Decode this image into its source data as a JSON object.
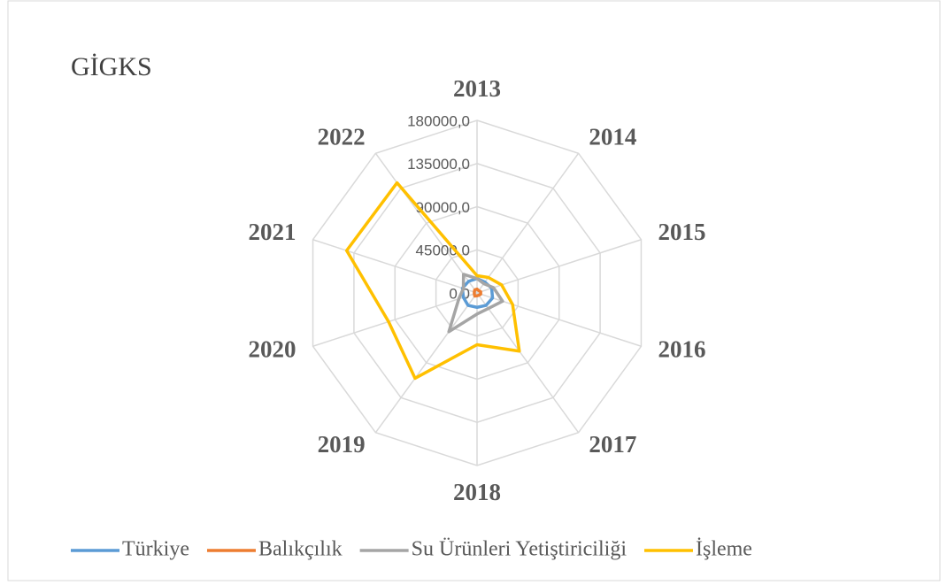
{
  "chart_data": {
    "type": "radar",
    "title": "GİGKS",
    "categories": [
      "2013",
      "2014",
      "2015",
      "2016",
      "2017",
      "2018",
      "2019",
      "2020",
      "2021",
      "2022"
    ],
    "ylim": [
      0,
      180000
    ],
    "yticks": [
      {
        "value": 0,
        "label": "0,0"
      },
      {
        "value": 45000,
        "label": "45000,0"
      },
      {
        "value": 90000,
        "label": "90000,0"
      },
      {
        "value": 135000,
        "label": "135000,0"
      },
      {
        "value": 180000,
        "label": "180000,0"
      }
    ],
    "grid": true,
    "legend": "bottom",
    "series": [
      {
        "name": "Türkiye",
        "color": "#5b9bd5",
        "values": [
          15000,
          14000,
          16000,
          17000,
          16000,
          15000,
          16000,
          15000,
          16000,
          15000
        ]
      },
      {
        "name": "Balıkçılık",
        "color": "#ed7d31",
        "values": [
          4000,
          3000,
          4000,
          4000,
          3000,
          3000,
          4000,
          3000,
          3000,
          4000
        ]
      },
      {
        "name": "Su Ürünleri Yetiştiriciliği",
        "color": "#a5a5a5",
        "values": [
          15000,
          12000,
          18000,
          28000,
          20000,
          22000,
          50000,
          20000,
          15000,
          24000
        ]
      },
      {
        "name": "İşleme",
        "color": "#ffc000",
        "values": [
          18000,
          20000,
          27000,
          39000,
          75000,
          54000,
          110000,
          97000,
          143000,
          142000
        ]
      }
    ]
  }
}
